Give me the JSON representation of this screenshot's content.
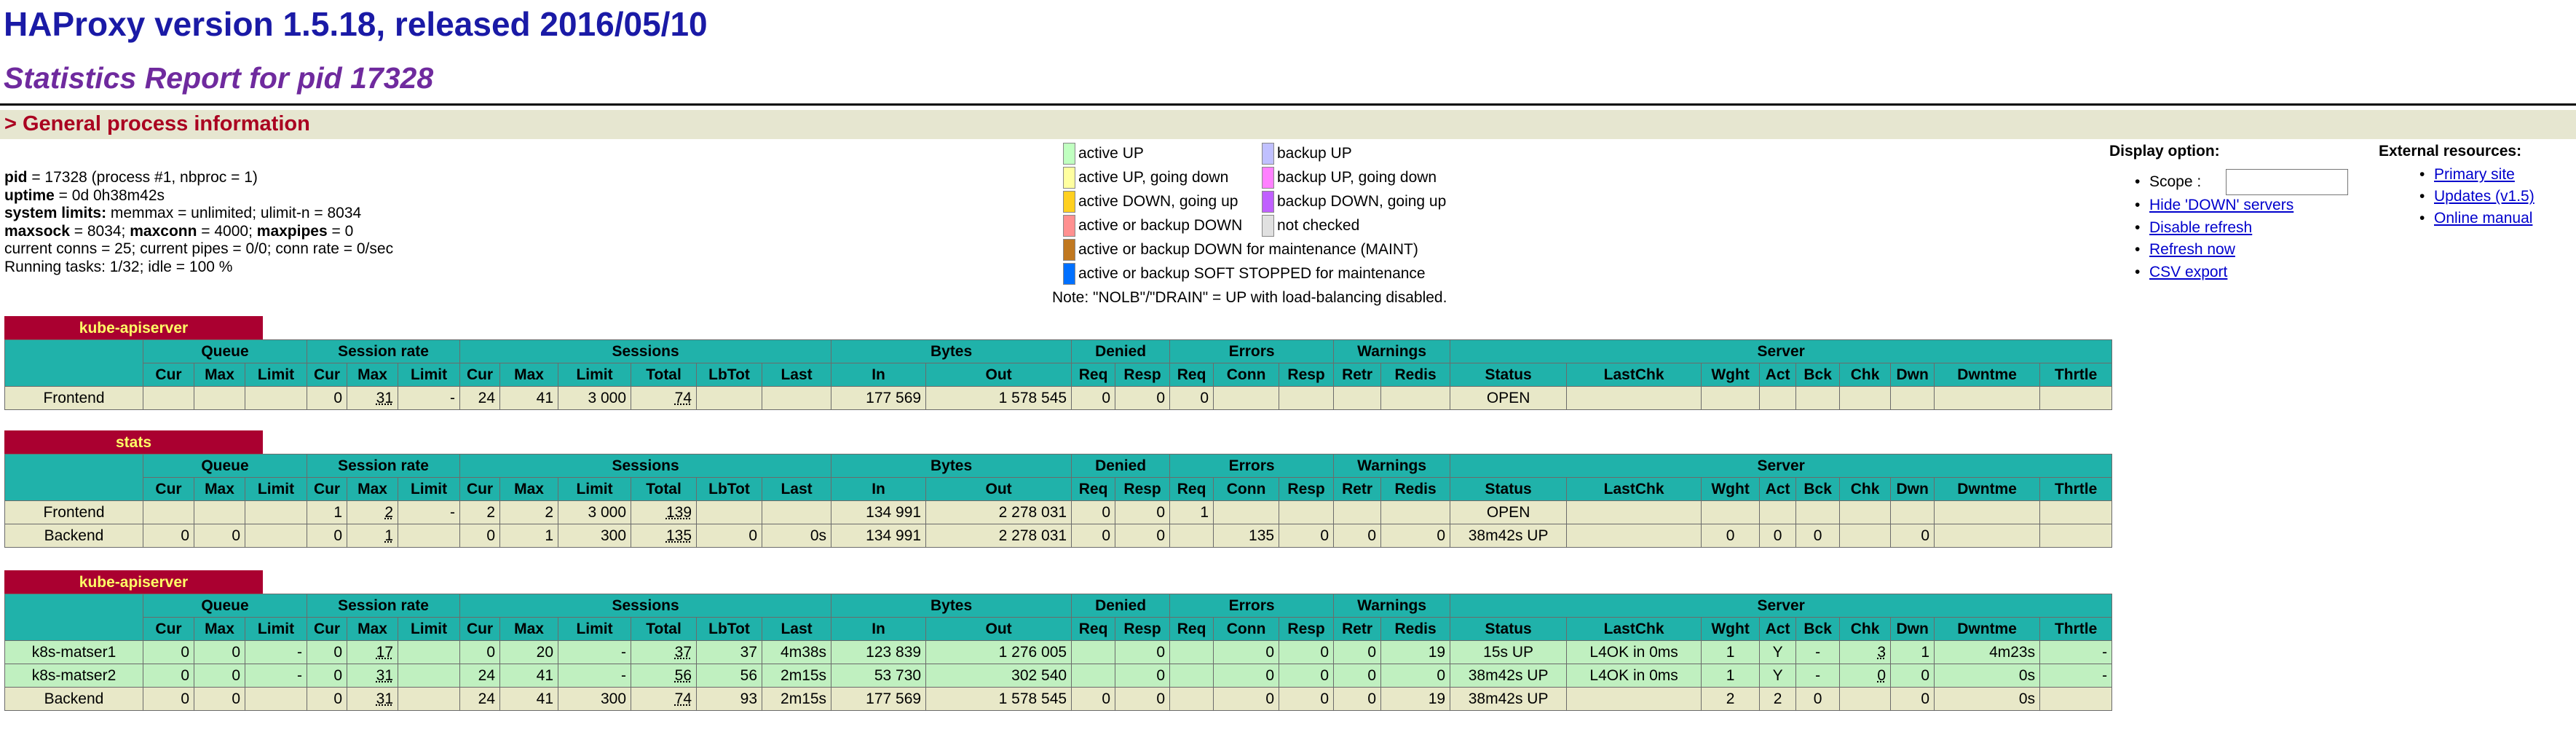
{
  "header": {
    "title": "HAProxy version 1.5.18, released 2016/05/10",
    "subtitle": "Statistics Report for pid 17328"
  },
  "general": {
    "heading": "> General process information",
    "pid_line": [
      " = 17328 (process #1, nbproc = 1)"
    ],
    "lines": {
      "pid_label": "pid",
      "pid_rest": " = 17328 (process #1, nbproc = 1)",
      "uptime_label": "uptime",
      "uptime_rest": " = 0d 0h38m42s",
      "limits_label": "system limits:",
      "limits_rest": " memmax = unlimited; ulimit-n = 8034",
      "maxsock_label": "maxsock",
      "maxsock_rest": " = 8034; ",
      "maxconn_label": "maxconn",
      "maxconn_rest": " = 4000; ",
      "maxpipes_label": "maxpipes",
      "maxpipes_rest": " = 0",
      "conns": "current conns = 25; current pipes = 0/0; conn rate = 0/sec",
      "tasks": "Running tasks: 1/32; idle = 100 %"
    }
  },
  "legend": {
    "items": [
      {
        "label": "active UP",
        "color": "#c0ffc0"
      },
      {
        "label": "active UP, going down",
        "color": "#ffffa0"
      },
      {
        "label": "active DOWN, going up",
        "color": "#ffd020"
      },
      {
        "label": "active or backup DOWN",
        "color": "#ff9090"
      },
      {
        "label": "active or backup DOWN for maintenance (MAINT)",
        "color": "#c07820"
      },
      {
        "label": "active or backup SOFT STOPPED for maintenance",
        "color": "#0070ff"
      },
      {
        "label": "backup UP",
        "color": "#c0c0ff"
      },
      {
        "label": "backup UP, going down",
        "color": "#ff80ff"
      },
      {
        "label": "backup DOWN, going up",
        "color": "#c060ff"
      },
      {
        "label": "not checked",
        "color": "#e0e0e0"
      }
    ],
    "note": "Note: \"NOLB\"/\"DRAIN\" = UP with load-balancing disabled."
  },
  "display_options": {
    "title": "Display option:",
    "scope_label": "Scope :",
    "scope_value": "",
    "links": [
      "Hide 'DOWN' servers",
      "Disable refresh",
      "Refresh now",
      "CSV export"
    ]
  },
  "external_resources": {
    "title": "External resources:",
    "links": [
      "Primary site",
      "Updates (v1.5)",
      "Online manual"
    ]
  },
  "columns": {
    "groups": [
      "Queue",
      "Session rate",
      "Sessions",
      "Bytes",
      "Denied",
      "Errors",
      "Warnings",
      "Server"
    ],
    "sub": [
      "Cur",
      "Max",
      "Limit",
      "Cur",
      "Max",
      "Limit",
      "Cur",
      "Max",
      "Limit",
      "Total",
      "LbTot",
      "Last",
      "In",
      "Out",
      "Req",
      "Resp",
      "Req",
      "Conn",
      "Resp",
      "Retr",
      "Redis",
      "Status",
      "LastChk",
      "Wght",
      "Act",
      "Bck",
      "Chk",
      "Dwn",
      "Dwntme",
      "Thrtle"
    ]
  },
  "proxies": [
    {
      "name": "kube-apiserver",
      "rows": [
        {
          "kind": "fe",
          "cells": [
            "Frontend",
            "",
            "",
            "",
            "0",
            "31",
            "-",
            "24",
            "41",
            "3 000",
            "74",
            "",
            "",
            "177 569",
            "1 578 545",
            "0",
            "0",
            "0",
            "",
            "",
            "",
            "",
            "OPEN",
            "",
            "",
            "",
            "",
            "",
            "",
            "",
            ""
          ]
        }
      ]
    },
    {
      "name": "stats",
      "rows": [
        {
          "kind": "fe",
          "cells": [
            "Frontend",
            "",
            "",
            "",
            "1",
            "2",
            "-",
            "2",
            "2",
            "3 000",
            "139",
            "",
            "",
            "134 991",
            "2 278 031",
            "0",
            "0",
            "1",
            "",
            "",
            "",
            "",
            "OPEN",
            "",
            "",
            "",
            "",
            "",
            "",
            "",
            ""
          ]
        },
        {
          "kind": "be",
          "cells": [
            "Backend",
            "0",
            "0",
            "",
            "0",
            "1",
            "",
            "0",
            "1",
            "300",
            "135",
            "0",
            "0s",
            "134 991",
            "2 278 031",
            "0",
            "0",
            "",
            "135",
            "0",
            "0",
            "0",
            "38m42s UP",
            "",
            "0",
            "0",
            "0",
            "",
            "0",
            "",
            ""
          ]
        }
      ]
    },
    {
      "name": "kube-apiserver",
      "rows": [
        {
          "kind": "sv",
          "cells": [
            "k8s-matser1",
            "0",
            "0",
            "-",
            "0",
            "17",
            "",
            "0",
            "20",
            "-",
            "37",
            "37",
            "4m38s",
            "123 839",
            "1 276 005",
            "",
            "0",
            "",
            "0",
            "0",
            "0",
            "19",
            "15s UP",
            "L4OK in 0ms",
            "1",
            "Y",
            "-",
            "3",
            "1",
            "4m23s",
            "-"
          ]
        },
        {
          "kind": "sv",
          "cells": [
            "k8s-matser2",
            "0",
            "0",
            "-",
            "0",
            "31",
            "",
            "24",
            "41",
            "-",
            "56",
            "56",
            "2m15s",
            "53 730",
            "302 540",
            "",
            "0",
            "",
            "0",
            "0",
            "0",
            "0",
            "38m42s UP",
            "L4OK in 0ms",
            "1",
            "Y",
            "-",
            "0",
            "0",
            "0s",
            "-"
          ]
        },
        {
          "kind": "be",
          "cells": [
            "Backend",
            "0",
            "0",
            "",
            "0",
            "31",
            "",
            "24",
            "41",
            "300",
            "74",
            "93",
            "2m15s",
            "177 569",
            "1 578 545",
            "0",
            "0",
            "",
            "0",
            "0",
            "0",
            "19",
            "38m42s UP",
            "",
            "2",
            "2",
            "0",
            "",
            "0",
            "0s",
            ""
          ]
        }
      ]
    }
  ]
}
